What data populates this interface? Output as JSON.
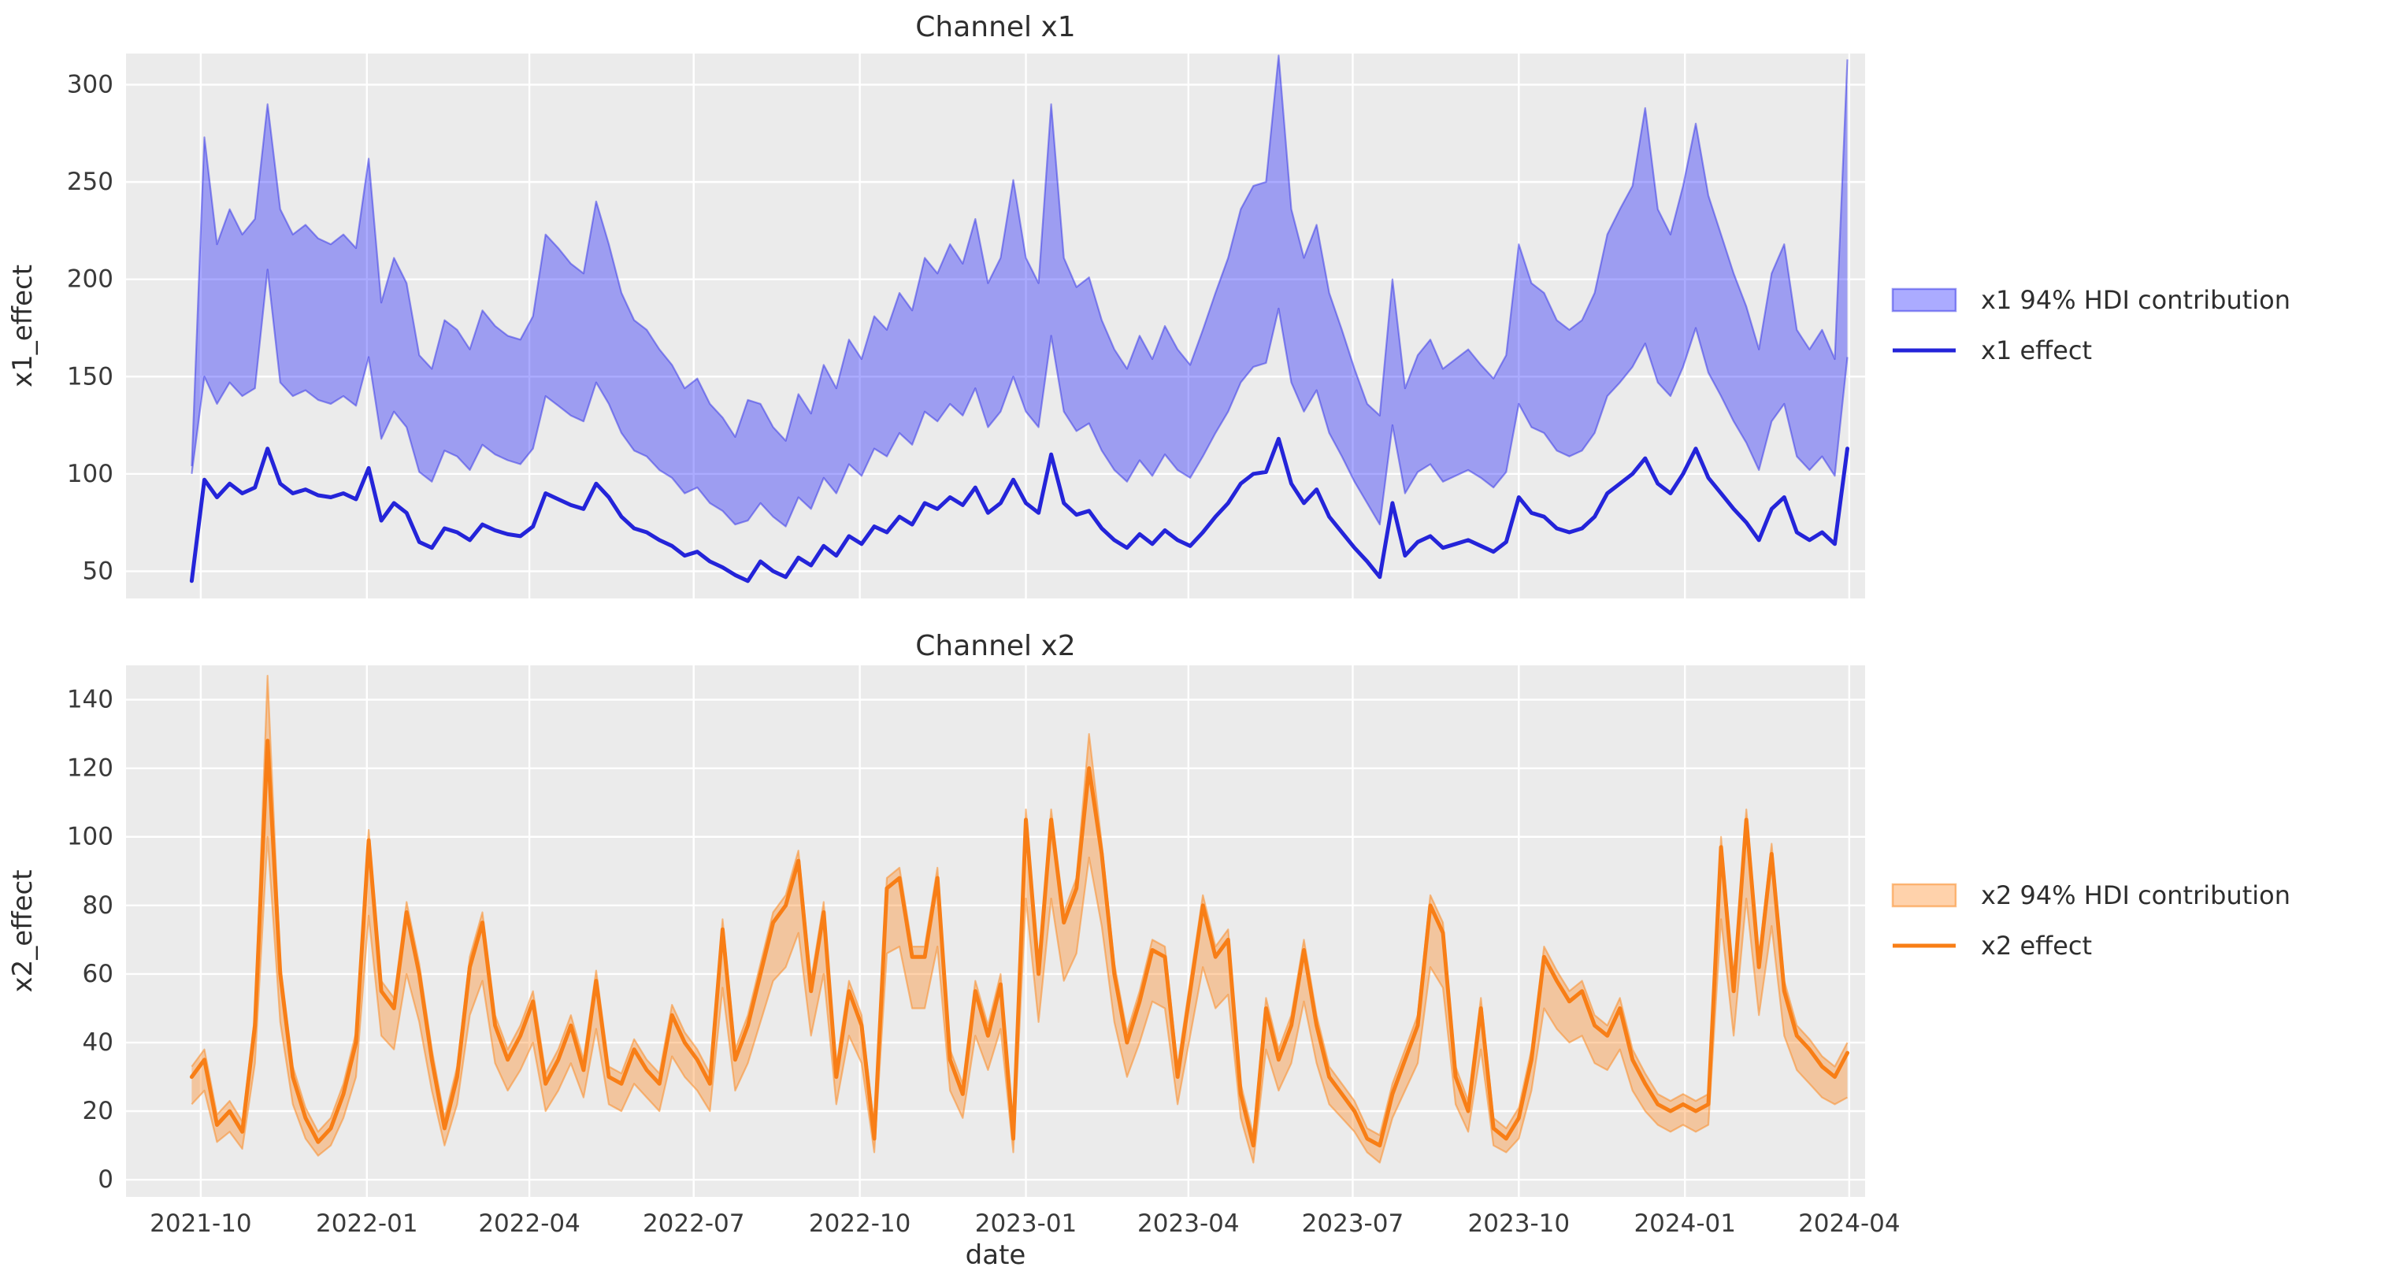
{
  "figure": {
    "background": "#ffffff",
    "axes_background": "#ebebeb",
    "grid_color": "#ffffff",
    "text_color": "#2e2e2e",
    "tick_color": "#3a3a3a"
  },
  "x_axis": {
    "label": "date",
    "tick_labels": [
      "2021-10",
      "2022-01",
      "2022-04",
      "2022-07",
      "2022-10",
      "2023-01",
      "2023-04",
      "2023-07",
      "2023-10",
      "2024-01",
      "2024-04"
    ],
    "tick_positions": [
      0.714,
      13.857,
      26.714,
      39.714,
      52.857,
      66.0,
      78.857,
      91.857,
      105.0,
      118.143,
      131.143
    ],
    "domain": [
      -5.2,
      132.4
    ]
  },
  "chart_data": [
    {
      "type": "line",
      "title": "Channel x1",
      "ylabel": "x1_effect",
      "y_ticks": [
        50,
        100,
        150,
        200,
        250,
        300
      ],
      "y_domain": [
        36,
        316
      ],
      "line_color": "#2424d9",
      "band_fill": "rgba(0,0,255,0.33)",
      "band_edge": "rgba(50,50,230,0.5)",
      "legend": [
        {
          "kind": "patch",
          "label": "x1 94% HDI contribution"
        },
        {
          "kind": "line",
          "label": "x1 effect"
        }
      ],
      "line": [
        45,
        97,
        88,
        95,
        90,
        93,
        113,
        95,
        90,
        92,
        89,
        88,
        90,
        87,
        103,
        76,
        85,
        80,
        65,
        62,
        72,
        70,
        66,
        74,
        71,
        69,
        68,
        73,
        90,
        87,
        84,
        82,
        95,
        88,
        78,
        72,
        70,
        66,
        63,
        58,
        60,
        55,
        52,
        48,
        45,
        55,
        50,
        47,
        57,
        53,
        63,
        58,
        68,
        64,
        73,
        70,
        78,
        74,
        85,
        82,
        88,
        84,
        93,
        80,
        85,
        97,
        85,
        80,
        110,
        85,
        79,
        81,
        72,
        66,
        62,
        69,
        64,
        71,
        66,
        63,
        70,
        78,
        85,
        95,
        100,
        101,
        118,
        95,
        85,
        92,
        78,
        70,
        62,
        55,
        47,
        85,
        58,
        65,
        68,
        62,
        64,
        66,
        63,
        60,
        65,
        88,
        80,
        78,
        72,
        70,
        72,
        78,
        90,
        95,
        100,
        108,
        95,
        90,
        100,
        113,
        98,
        90,
        82,
        75,
        66,
        82,
        88,
        70,
        66,
        70,
        64,
        113
      ],
      "band_lower": [
        100,
        150,
        136,
        147,
        140,
        144,
        205,
        147,
        140,
        143,
        138,
        136,
        140,
        135,
        160,
        118,
        132,
        124,
        101,
        96,
        112,
        109,
        102,
        115,
        110,
        107,
        105,
        113,
        140,
        135,
        130,
        127,
        147,
        136,
        121,
        112,
        109,
        102,
        98,
        90,
        93,
        85,
        81,
        74,
        76,
        85,
        78,
        73,
        88,
        82,
        98,
        90,
        105,
        99,
        113,
        109,
        121,
        115,
        132,
        127,
        136,
        130,
        144,
        124,
        132,
        150,
        132,
        124,
        171,
        132,
        122,
        126,
        112,
        102,
        96,
        107,
        99,
        110,
        102,
        98,
        109,
        121,
        132,
        147,
        155,
        157,
        185,
        147,
        132,
        143,
        121,
        109,
        96,
        85,
        74,
        125,
        90,
        101,
        105,
        96,
        99,
        102,
        98,
        93,
        101,
        136,
        124,
        121,
        112,
        109,
        112,
        121,
        140,
        147,
        155,
        167,
        147,
        140,
        155,
        175,
        152,
        140,
        127,
        116,
        102,
        127,
        136,
        109,
        102,
        109,
        99,
        160
      ],
      "band_upper": [
        104,
        273,
        218,
        236,
        223,
        231,
        290,
        236,
        223,
        228,
        221,
        218,
        223,
        216,
        262,
        188,
        211,
        198,
        161,
        154,
        179,
        174,
        164,
        184,
        176,
        171,
        169,
        181,
        223,
        216,
        208,
        203,
        240,
        218,
        193,
        179,
        174,
        164,
        156,
        144,
        149,
        136,
        129,
        119,
        138,
        136,
        124,
        117,
        141,
        131,
        156,
        144,
        169,
        159,
        181,
        174,
        193,
        184,
        211,
        203,
        218,
        208,
        231,
        198,
        211,
        251,
        211,
        198,
        290,
        211,
        196,
        201,
        179,
        164,
        154,
        171,
        159,
        176,
        164,
        156,
        174,
        193,
        211,
        236,
        248,
        250,
        315,
        236,
        211,
        228,
        193,
        174,
        154,
        136,
        130,
        200,
        144,
        161,
        169,
        154,
        159,
        164,
        156,
        149,
        161,
        218,
        198,
        193,
        179,
        174,
        179,
        193,
        223,
        236,
        248,
        288,
        236,
        223,
        248,
        280,
        243,
        223,
        203,
        186,
        164,
        203,
        218,
        174,
        164,
        174,
        159,
        313
      ]
    },
    {
      "type": "line",
      "title": "Channel x2",
      "ylabel": "x2_effect",
      "y_ticks": [
        0,
        20,
        40,
        60,
        80,
        100,
        120,
        140
      ],
      "y_domain": [
        -5,
        150
      ],
      "line_color": "#f87e16",
      "band_fill": "rgba(255,127,14,0.35)",
      "band_edge": "rgba(250,140,40,0.55)",
      "legend": [
        {
          "kind": "patch",
          "label": "x2 94% HDI contribution"
        },
        {
          "kind": "line",
          "label": "x2 effect"
        }
      ],
      "line": [
        30,
        35,
        16,
        20,
        14,
        45,
        128,
        60,
        30,
        18,
        11,
        15,
        25,
        40,
        99,
        55,
        50,
        78,
        60,
        35,
        15,
        30,
        62,
        75,
        45,
        35,
        42,
        52,
        28,
        35,
        45,
        32,
        58,
        30,
        28,
        38,
        32,
        28,
        48,
        40,
        35,
        28,
        73,
        35,
        45,
        60,
        75,
        80,
        93,
        55,
        78,
        30,
        55,
        45,
        12,
        85,
        88,
        65,
        65,
        88,
        35,
        25,
        55,
        42,
        57,
        12,
        105,
        60,
        105,
        75,
        85,
        120,
        95,
        60,
        40,
        52,
        67,
        65,
        30,
        55,
        80,
        65,
        70,
        25,
        10,
        50,
        35,
        45,
        67,
        45,
        30,
        25,
        20,
        12,
        10,
        25,
        35,
        45,
        80,
        72,
        30,
        20,
        50,
        15,
        12,
        18,
        35,
        65,
        58,
        52,
        55,
        45,
        42,
        50,
        35,
        28,
        22,
        20,
        22,
        20,
        22,
        97,
        55,
        105,
        62,
        95,
        55,
        42,
        38,
        33,
        30,
        37
      ],
      "band_lower": [
        22,
        26,
        11,
        14,
        9,
        34,
        100,
        46,
        22,
        12,
        7,
        10,
        18,
        30,
        77,
        42,
        38,
        60,
        46,
        26,
        10,
        22,
        48,
        58,
        34,
        26,
        32,
        40,
        20,
        26,
        34,
        24,
        44,
        22,
        20,
        28,
        24,
        20,
        36,
        30,
        26,
        20,
        56,
        26,
        34,
        46,
        58,
        62,
        72,
        42,
        60,
        22,
        42,
        34,
        8,
        66,
        68,
        50,
        50,
        68,
        26,
        18,
        42,
        32,
        44,
        8,
        82,
        46,
        82,
        58,
        66,
        94,
        74,
        46,
        30,
        40,
        52,
        50,
        22,
        42,
        62,
        50,
        54,
        18,
        5,
        38,
        26,
        34,
        52,
        34,
        22,
        18,
        14,
        8,
        5,
        18,
        26,
        34,
        62,
        56,
        22,
        14,
        38,
        10,
        8,
        12,
        26,
        50,
        44,
        40,
        42,
        34,
        32,
        38,
        26,
        20,
        16,
        14,
        16,
        14,
        16,
        76,
        42,
        82,
        48,
        74,
        42,
        32,
        28,
        24,
        22,
        24
      ],
      "band_upper": [
        33,
        38,
        19,
        23,
        17,
        48,
        147,
        63,
        33,
        21,
        14,
        18,
        28,
        43,
        102,
        58,
        53,
        81,
        63,
        38,
        18,
        33,
        65,
        78,
        48,
        38,
        45,
        55,
        31,
        38,
        48,
        35,
        61,
        33,
        31,
        41,
        35,
        31,
        51,
        43,
        38,
        31,
        76,
        38,
        48,
        63,
        78,
        83,
        96,
        58,
        81,
        33,
        58,
        48,
        15,
        88,
        91,
        68,
        68,
        91,
        38,
        28,
        58,
        45,
        60,
        15,
        108,
        63,
        108,
        78,
        88,
        130,
        98,
        63,
        43,
        55,
        70,
        68,
        33,
        58,
        83,
        68,
        73,
        28,
        13,
        53,
        38,
        48,
        70,
        48,
        33,
        28,
        23,
        15,
        13,
        28,
        38,
        48,
        83,
        75,
        33,
        23,
        53,
        18,
        15,
        21,
        38,
        68,
        61,
        55,
        58,
        48,
        45,
        53,
        38,
        31,
        25,
        23,
        25,
        23,
        25,
        100,
        58,
        108,
        65,
        98,
        58,
        45,
        41,
        36,
        33,
        40
      ]
    }
  ]
}
